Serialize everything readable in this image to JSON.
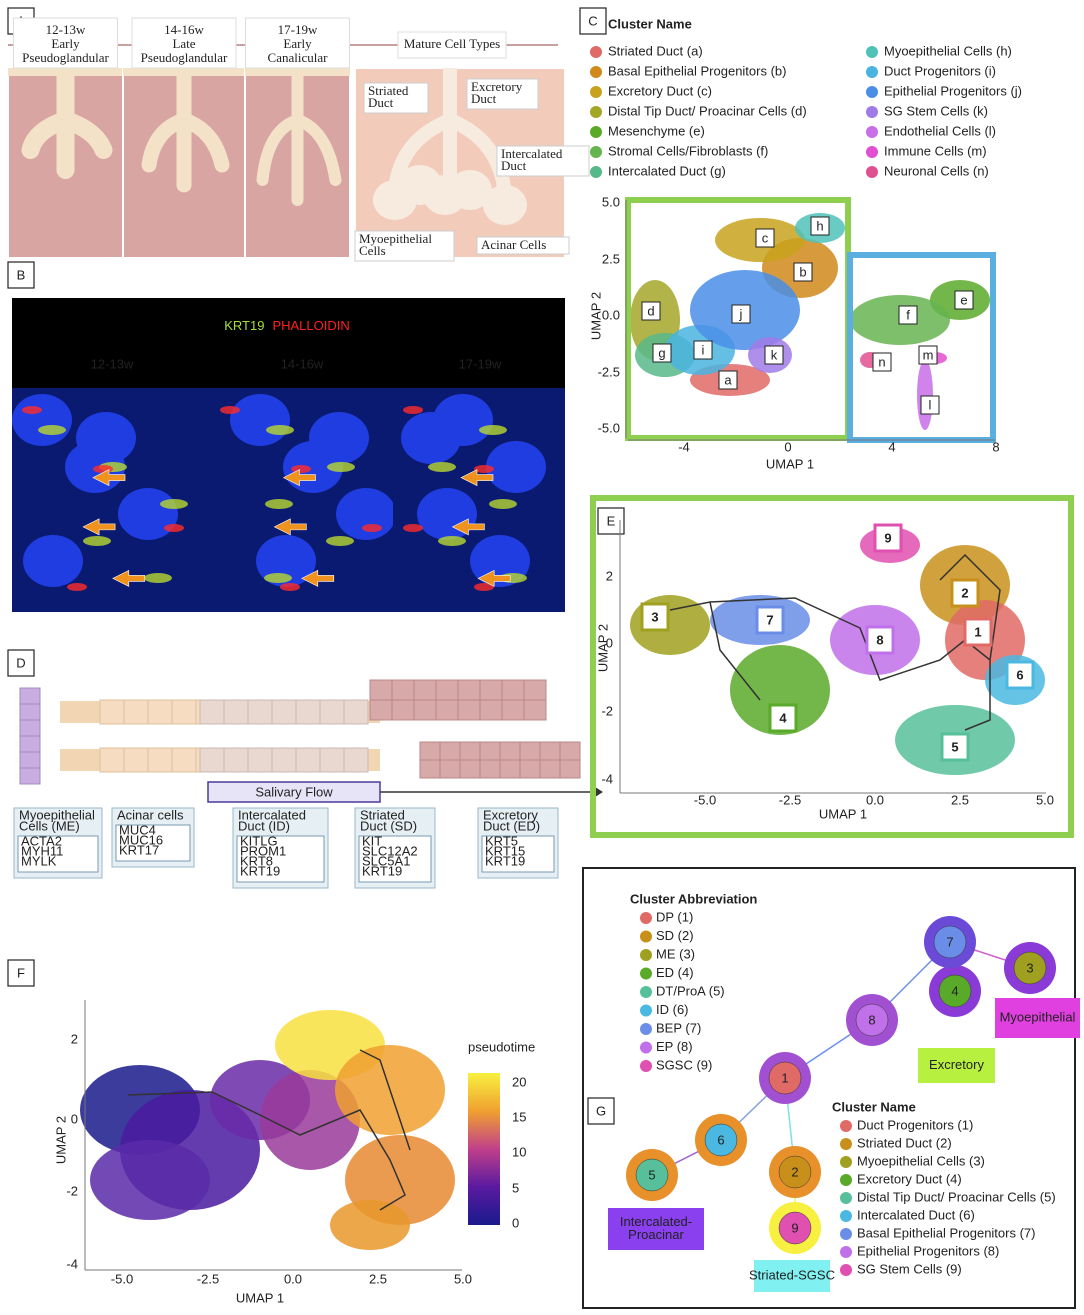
{
  "panels": {
    "A": {
      "letter": "A",
      "stages": [
        {
          "age": "12-13w",
          "lines": [
            "Early",
            "Pseudoglandular"
          ]
        },
        {
          "age": "14-16w",
          "lines": [
            "Late",
            "Pseudoglandular"
          ]
        },
        {
          "age": "17-19w",
          "lines": [
            "Early",
            "Canalicular"
          ]
        }
      ],
      "mature": "Mature Cell Types",
      "labels": [
        [
          "Striated",
          "Duct"
        ],
        [
          "Excretory",
          "Duct"
        ],
        [
          "Intercalated",
          "Duct"
        ],
        [
          "Myoepithelial",
          "Cells"
        ],
        [
          "Acinar Cells"
        ]
      ]
    },
    "B": {
      "letter": "B",
      "stain1": "KRT19",
      "stain2": "PHALLOIDIN",
      "ages": [
        "12-13w",
        "14-16w",
        "17-19w"
      ]
    },
    "C": {
      "letter": "C",
      "legend_title": "Cluster Name",
      "legend": [
        {
          "name": "Striated Duct (a)",
          "color": "#e06a66"
        },
        {
          "name": "Basal Epithelial Progenitors (b)",
          "color": "#d08a1c"
        },
        {
          "name": "Excretory Duct (c)",
          "color": "#c8a21c"
        },
        {
          "name": "Distal Tip Duct/ Proacinar Cells (d)",
          "color": "#a4a628"
        },
        {
          "name": "Mesenchyme (e)",
          "color": "#5aaa2a"
        },
        {
          "name": "Stromal Cells/Fibroblasts (f)",
          "color": "#66b450"
        },
        {
          "name": "Intercalated Duct (g)",
          "color": "#57b98a"
        },
        {
          "name": "Myoepithelial Cells (h)",
          "color": "#4fc2b8"
        },
        {
          "name": "Duct Progenitors (i)",
          "color": "#4ab4e0"
        },
        {
          "name": "Epithelial Progenitors (j)",
          "color": "#4a8ee8"
        },
        {
          "name": "SG Stem Cells (k)",
          "color": "#a07be8"
        },
        {
          "name": "Endothelial Cells (l)",
          "color": "#c86ee8"
        },
        {
          "name": "Immune Cells (m)",
          "color": "#e050d0"
        },
        {
          "name": "Neuronal Cells (n)",
          "color": "#e0508e"
        }
      ],
      "clusters": [
        "a",
        "b",
        "c",
        "d",
        "e",
        "f",
        "g",
        "h",
        "i",
        "j",
        "k",
        "l",
        "m",
        "n"
      ],
      "yticks": [
        "5.0",
        "2.5",
        "0.0",
        "-2.5",
        "-5.0"
      ],
      "xticks": [
        "-4",
        "0",
        "4",
        "8"
      ],
      "xlabel": "UMAP 1",
      "ylabel": "UMAP 2"
    },
    "D": {
      "letter": "D",
      "flow": "Salivary Flow",
      "boxes": [
        {
          "title": [
            "Myoepithelial",
            "Cells (ME)"
          ],
          "markers": [
            "ACTA2",
            "MYH11",
            "MYLK"
          ]
        },
        {
          "title": [
            "Acinar cells"
          ],
          "markers": [
            "MUC4",
            "MUC16",
            "KRT17"
          ]
        },
        {
          "title": [
            "Intercalated",
            "Duct (ID)"
          ],
          "markers": [
            "KITLG",
            "PROM1",
            "KRT8",
            "KRT19"
          ]
        },
        {
          "title": [
            "Striated",
            "Duct (SD)"
          ],
          "markers": [
            "KIT",
            "SLC12A2",
            "SLC5A1",
            "KRT19"
          ]
        },
        {
          "title": [
            "Excretory",
            "Duct (ED)"
          ],
          "markers": [
            "KRT5",
            "KRT15",
            "KRT19"
          ]
        }
      ]
    },
    "E": {
      "letter": "E",
      "clusters": [
        "9",
        "2",
        "3",
        "7",
        "1",
        "8",
        "6",
        "4",
        "5"
      ],
      "yticks": [
        "2",
        "0",
        "-2",
        "-4"
      ],
      "xticks": [
        "-5.0",
        "-2.5",
        "0.0",
        "2.5",
        "5.0"
      ],
      "xlabel": "UMAP 1",
      "ylabel": "UMAP 2"
    },
    "F": {
      "letter": "F",
      "yticks": [
        "2",
        "0",
        "-2",
        "-4"
      ],
      "xticks": [
        "-5.0",
        "-2.5",
        "0.0",
        "2.5",
        "5.0"
      ],
      "xlabel": "UMAP 1",
      "ylabel": "UMAP 2",
      "legend_title": "pseudotime",
      "legend_ticks": [
        "20",
        "15",
        "10",
        "5",
        "0"
      ]
    },
    "G": {
      "letter": "G",
      "abbr_title": "Cluster Abbreviation",
      "abbreviations": [
        "DP (1)",
        "SD (2)",
        "ME (3)",
        "ED (4)",
        "DT/ProA (5)",
        "ID (6)",
        "BEP (7)",
        "EP (8)",
        "SGSC (9)"
      ],
      "colors": [
        "#e06a66",
        "#c8901a",
        "#a0a020",
        "#5aaa2a",
        "#57c09a",
        "#4ab8e0",
        "#6a8ee8",
        "#c070e8",
        "#e050b0"
      ],
      "name_title": "Cluster Name",
      "names": [
        "Duct Progenitors (1)",
        "Striated Duct (2)",
        "Myoepithelial Cells (3)",
        "Excretory Duct (4)",
        "Distal Tip Duct/ Proacinar Cells (5)",
        "Intercalated Duct (6)",
        "Basal Epithelial Progenitors (7)",
        "Epithelial Progenitors (8)",
        "SG Stem Cells (9)"
      ],
      "nodes": [
        "1",
        "2",
        "3",
        "4",
        "5",
        "6",
        "7",
        "8",
        "9"
      ],
      "groups": [
        [
          "Myoepithelial"
        ],
        [
          "Excretory"
        ],
        [
          "Intercalated-",
          "Proacinar"
        ],
        [
          "Striated-SGSC"
        ]
      ]
    }
  }
}
